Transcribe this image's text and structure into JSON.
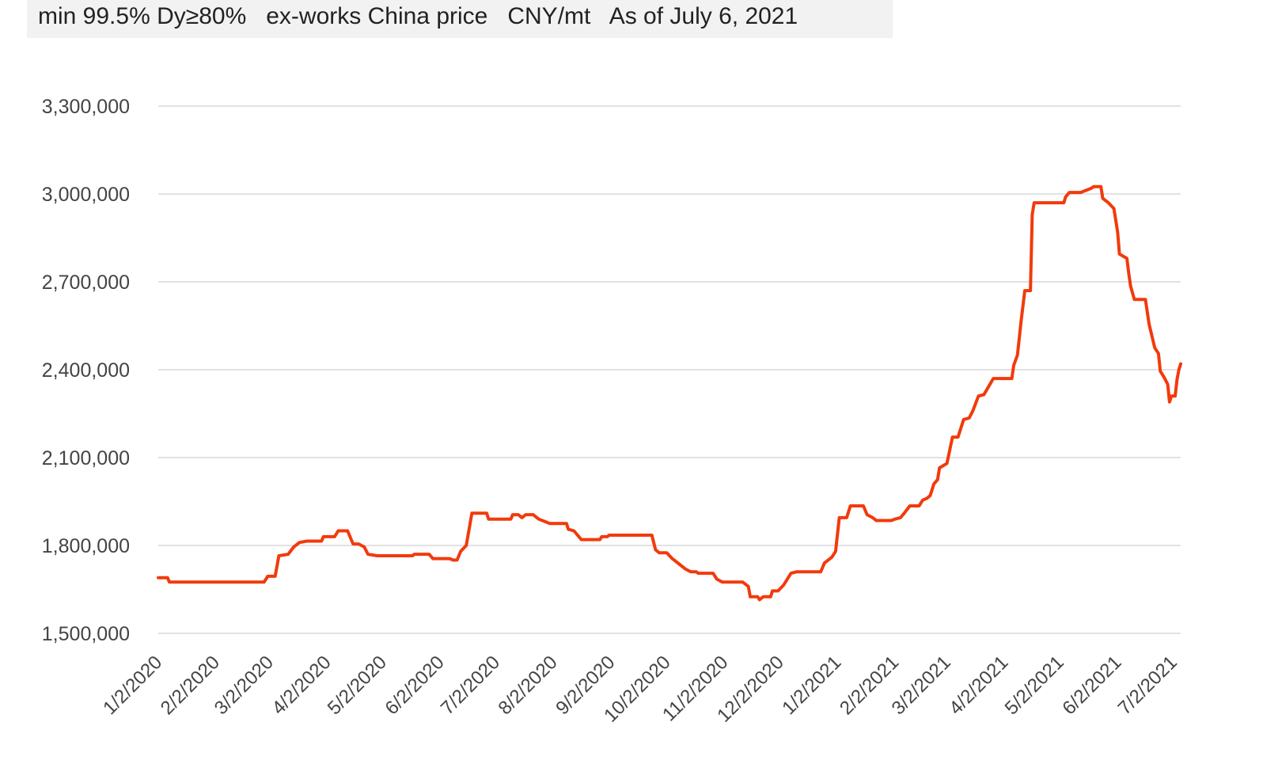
{
  "header": {
    "subtitle": "min 99.5% Dy≥80%   ex-works China price   CNY/mt   As of July 6, 2021"
  },
  "colors": {
    "line": "#f23a0c",
    "grid": "#d9d9d9",
    "header_bg": "#f2f2f2"
  },
  "chart_data": {
    "type": "line",
    "title": "",
    "xlabel": "",
    "ylabel": "",
    "ylim": [
      1500000,
      3300000
    ],
    "grid": true,
    "y_ticks": [
      1500000,
      1800000,
      2100000,
      2400000,
      2700000,
      3000000,
      3300000
    ],
    "y_tick_labels": [
      "1,500,000",
      "1,800,000",
      "2,100,000",
      "2,400,000",
      "2,700,000",
      "3,000,000",
      "3,300,000"
    ],
    "x_ticks": [
      "2020-01-02",
      "2020-02-02",
      "2020-03-02",
      "2020-04-02",
      "2020-05-02",
      "2020-06-02",
      "2020-07-02",
      "2020-08-02",
      "2020-09-02",
      "2020-10-02",
      "2020-11-02",
      "2020-12-02",
      "2021-01-02",
      "2021-02-02",
      "2021-03-02",
      "2021-04-02",
      "2021-05-02",
      "2021-06-02",
      "2021-07-02"
    ],
    "x_tick_labels": [
      "1/2/2020",
      "2/2/2020",
      "3/2/2020",
      "4/2/2020",
      "5/2/2020",
      "6/2/2020",
      "7/2/2020",
      "8/2/2020",
      "9/2/2020",
      "10/2/2020",
      "11/2/2020",
      "12/2/2020",
      "1/2/2021",
      "2/2/2021",
      "3/2/2021",
      "4/2/2021",
      "5/2/2021",
      "6/2/2021",
      "7/2/2021"
    ],
    "x_range": [
      "2020-01-02",
      "2021-07-06"
    ],
    "series": [
      {
        "points": [
          [
            "2020-01-02",
            1690000
          ],
          [
            "2020-01-07",
            1690000
          ],
          [
            "2020-01-08",
            1675000
          ],
          [
            "2020-02-28",
            1675000
          ],
          [
            "2020-03-01",
            1695000
          ],
          [
            "2020-03-05",
            1695000
          ],
          [
            "2020-03-07",
            1765000
          ],
          [
            "2020-03-12",
            1770000
          ],
          [
            "2020-03-15",
            1795000
          ],
          [
            "2020-03-18",
            1810000
          ],
          [
            "2020-03-22",
            1815000
          ],
          [
            "2020-03-30",
            1815000
          ],
          [
            "2020-03-31",
            1830000
          ],
          [
            "2020-04-06",
            1830000
          ],
          [
            "2020-04-08",
            1850000
          ],
          [
            "2020-04-13",
            1850000
          ],
          [
            "2020-04-16",
            1805000
          ],
          [
            "2020-04-19",
            1805000
          ],
          [
            "2020-04-22",
            1795000
          ],
          [
            "2020-04-24",
            1770000
          ],
          [
            "2020-04-29",
            1765000
          ],
          [
            "2020-05-18",
            1765000
          ],
          [
            "2020-05-19",
            1770000
          ],
          [
            "2020-05-27",
            1770000
          ],
          [
            "2020-05-29",
            1755000
          ],
          [
            "2020-06-07",
            1755000
          ],
          [
            "2020-06-09",
            1750000
          ],
          [
            "2020-06-11",
            1750000
          ],
          [
            "2020-06-13",
            1780000
          ],
          [
            "2020-06-16",
            1800000
          ],
          [
            "2020-06-19",
            1910000
          ],
          [
            "2020-06-27",
            1910000
          ],
          [
            "2020-06-28",
            1890000
          ],
          [
            "2020-07-10",
            1890000
          ],
          [
            "2020-07-11",
            1905000
          ],
          [
            "2020-07-14",
            1905000
          ],
          [
            "2020-07-16",
            1895000
          ],
          [
            "2020-07-18",
            1905000
          ],
          [
            "2020-07-22",
            1905000
          ],
          [
            "2020-07-25",
            1890000
          ],
          [
            "2020-07-29",
            1880000
          ],
          [
            "2020-07-31",
            1875000
          ],
          [
            "2020-08-09",
            1875000
          ],
          [
            "2020-08-10",
            1855000
          ],
          [
            "2020-08-13",
            1850000
          ],
          [
            "2020-08-15",
            1835000
          ],
          [
            "2020-08-17",
            1820000
          ],
          [
            "2020-08-27",
            1820000
          ],
          [
            "2020-08-28",
            1830000
          ],
          [
            "2020-08-31",
            1830000
          ],
          [
            "2020-09-01",
            1835000
          ],
          [
            "2020-09-24",
            1835000
          ],
          [
            "2020-09-26",
            1785000
          ],
          [
            "2020-09-28",
            1775000
          ],
          [
            "2020-10-02",
            1775000
          ],
          [
            "2020-10-05",
            1755000
          ],
          [
            "2020-10-09",
            1735000
          ],
          [
            "2020-10-12",
            1720000
          ],
          [
            "2020-10-15",
            1710000
          ],
          [
            "2020-10-18",
            1710000
          ],
          [
            "2020-10-19",
            1705000
          ],
          [
            "2020-10-27",
            1705000
          ],
          [
            "2020-10-29",
            1685000
          ],
          [
            "2020-11-01",
            1675000
          ],
          [
            "2020-11-12",
            1675000
          ],
          [
            "2020-11-15",
            1660000
          ],
          [
            "2020-11-16",
            1625000
          ],
          [
            "2020-11-20",
            1625000
          ],
          [
            "2020-11-21",
            1615000
          ],
          [
            "2020-11-23",
            1625000
          ],
          [
            "2020-11-27",
            1625000
          ],
          [
            "2020-11-28",
            1645000
          ],
          [
            "2020-12-01",
            1645000
          ],
          [
            "2020-12-04",
            1665000
          ],
          [
            "2020-12-06",
            1685000
          ],
          [
            "2020-12-08",
            1705000
          ],
          [
            "2020-12-11",
            1710000
          ],
          [
            "2020-12-24",
            1710000
          ],
          [
            "2020-12-26",
            1740000
          ],
          [
            "2020-12-30",
            1760000
          ],
          [
            "2021-01-01",
            1780000
          ],
          [
            "2021-01-03",
            1895000
          ],
          [
            "2021-01-07",
            1895000
          ],
          [
            "2021-01-09",
            1935000
          ],
          [
            "2021-01-16",
            1935000
          ],
          [
            "2021-01-18",
            1905000
          ],
          [
            "2021-01-21",
            1895000
          ],
          [
            "2021-01-23",
            1885000
          ],
          [
            "2021-01-31",
            1885000
          ],
          [
            "2021-02-02",
            1890000
          ],
          [
            "2021-02-05",
            1895000
          ],
          [
            "2021-02-07",
            1910000
          ],
          [
            "2021-02-10",
            1935000
          ],
          [
            "2021-02-15",
            1935000
          ],
          [
            "2021-02-17",
            1955000
          ],
          [
            "2021-02-19",
            1960000
          ],
          [
            "2021-02-21",
            1970000
          ],
          [
            "2021-02-23",
            2010000
          ],
          [
            "2021-02-25",
            2025000
          ],
          [
            "2021-02-26",
            2065000
          ],
          [
            "2021-03-02",
            2080000
          ],
          [
            "2021-03-05",
            2170000
          ],
          [
            "2021-03-08",
            2170000
          ],
          [
            "2021-03-11",
            2230000
          ],
          [
            "2021-03-14",
            2235000
          ],
          [
            "2021-03-16",
            2260000
          ],
          [
            "2021-03-19",
            2310000
          ],
          [
            "2021-03-22",
            2315000
          ],
          [
            "2021-03-27",
            2370000
          ],
          [
            "2021-04-04",
            2370000
          ],
          [
            "2021-04-06",
            2370000
          ],
          [
            "2021-04-07",
            2415000
          ],
          [
            "2021-04-09",
            2450000
          ],
          [
            "2021-04-11",
            2565000
          ],
          [
            "2021-04-13",
            2670000
          ],
          [
            "2021-04-16",
            2670000
          ],
          [
            "2021-04-17",
            2930000
          ],
          [
            "2021-04-18",
            2970000
          ],
          [
            "2021-04-27",
            2970000
          ],
          [
            "2021-05-04",
            2970000
          ],
          [
            "2021-05-05",
            2990000
          ],
          [
            "2021-05-07",
            3005000
          ],
          [
            "2021-05-13",
            3005000
          ],
          [
            "2021-05-17",
            3015000
          ],
          [
            "2021-05-19",
            3020000
          ],
          [
            "2021-05-20",
            3025000
          ],
          [
            "2021-05-24",
            3025000
          ],
          [
            "2021-05-25",
            2985000
          ],
          [
            "2021-05-28",
            2970000
          ],
          [
            "2021-05-31",
            2950000
          ],
          [
            "2021-06-02",
            2870000
          ],
          [
            "2021-06-03",
            2795000
          ],
          [
            "2021-06-07",
            2780000
          ],
          [
            "2021-06-08",
            2730000
          ],
          [
            "2021-06-09",
            2685000
          ],
          [
            "2021-06-11",
            2640000
          ],
          [
            "2021-06-17",
            2640000
          ],
          [
            "2021-06-19",
            2555000
          ],
          [
            "2021-06-22",
            2475000
          ],
          [
            "2021-06-24",
            2455000
          ],
          [
            "2021-06-25",
            2395000
          ],
          [
            "2021-06-27",
            2375000
          ],
          [
            "2021-06-29",
            2350000
          ],
          [
            "2021-06-30",
            2290000
          ],
          [
            "2021-07-01",
            2310000
          ],
          [
            "2021-07-02",
            2310000
          ],
          [
            "2021-07-03",
            2310000
          ],
          [
            "2021-07-04",
            2365000
          ],
          [
            "2021-07-05",
            2400000
          ],
          [
            "2021-07-06",
            2420000
          ]
        ]
      }
    ]
  }
}
